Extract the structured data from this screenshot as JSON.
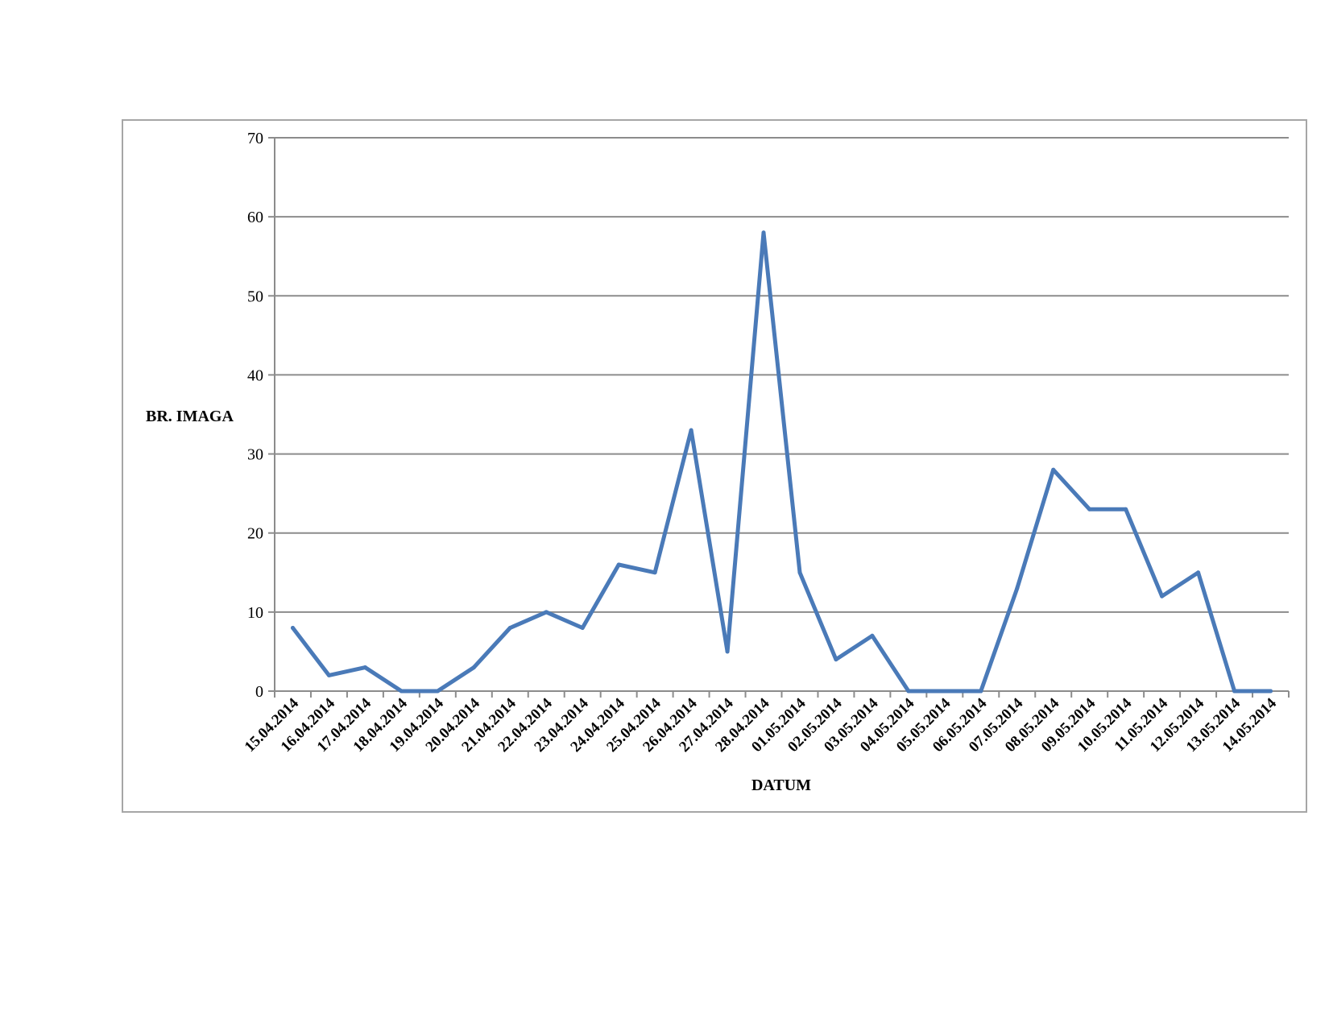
{
  "chart_data": {
    "type": "line",
    "xlabel": "DATUM",
    "ylabel": "BR. IMAGA",
    "ylim": [
      0,
      70
    ],
    "yticks": [
      0,
      10,
      20,
      30,
      40,
      50,
      60,
      70
    ],
    "grid": true,
    "line_color": "#4a7ab8",
    "grid_color": "#8c8c8c",
    "categories": [
      "15.04.2014",
      "16.04.2014",
      "17.04.2014",
      "18.04.2014",
      "19.04.2014",
      "20.04.2014",
      "21.04.2014",
      "22.04.2014",
      "23.04.2014",
      "24.04.2014",
      "25.04.2014",
      "26.04.2014",
      "27.04.2014",
      "28.04.2014",
      "01.05.2014",
      "02.05.2014",
      "03.05.2014",
      "04.05.2014",
      "05.05.2014",
      "06.05.2014",
      "07.05.2014",
      "08.05.2014",
      "09.05.2014",
      "10.05.2014",
      "11.05.2014",
      "12.05.2014",
      "13.05.2014",
      "14.05.2014"
    ],
    "values": [
      8,
      2,
      3,
      0,
      0,
      3,
      8,
      10,
      8,
      16,
      15,
      33,
      5,
      58,
      15,
      4,
      7,
      0,
      0,
      0,
      13,
      28,
      23,
      23,
      12,
      15,
      0,
      0
    ]
  }
}
